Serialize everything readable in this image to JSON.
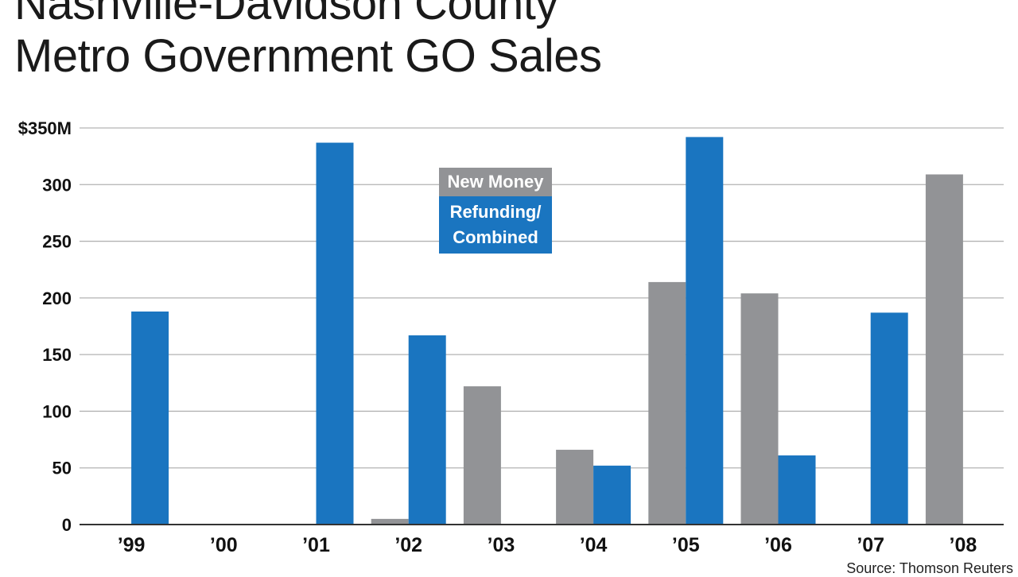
{
  "header": {
    "title_line1": "Nashville-Davidson County",
    "title_line2": "Metro Government GO Sales"
  },
  "legend": {
    "new_money": "New Money",
    "refunding_line1": "Refunding/",
    "refunding_line2": "Combined"
  },
  "footer": {
    "source": "Source: Thomson Reuters"
  },
  "colors": {
    "new_money": "#929396",
    "refunding": "#1a75c0",
    "grid": "#b3b3b3"
  },
  "chart_data": {
    "type": "bar",
    "title": "Nashville-Davidson County Metro Government GO Sales",
    "xlabel": "",
    "ylabel": "",
    "ylim": [
      0,
      350
    ],
    "yticks": [
      0,
      50,
      100,
      150,
      200,
      250,
      300,
      350
    ],
    "ytick_labels": [
      "0",
      "50",
      "100",
      "150",
      "200",
      "250",
      "300",
      "$350M"
    ],
    "categories": [
      "’99",
      "’00",
      "’01",
      "’02",
      "’03",
      "’04",
      "’05",
      "’06",
      "’07",
      "’08"
    ],
    "series": [
      {
        "name": "New Money",
        "values": [
          0,
          0,
          0,
          5,
          122,
          66,
          214,
          204,
          0,
          309
        ]
      },
      {
        "name": "Refunding/Combined",
        "values": [
          188,
          0,
          337,
          167,
          0,
          52,
          342,
          61,
          187,
          0
        ]
      }
    ],
    "grid": true,
    "legend_position": "top-center"
  }
}
